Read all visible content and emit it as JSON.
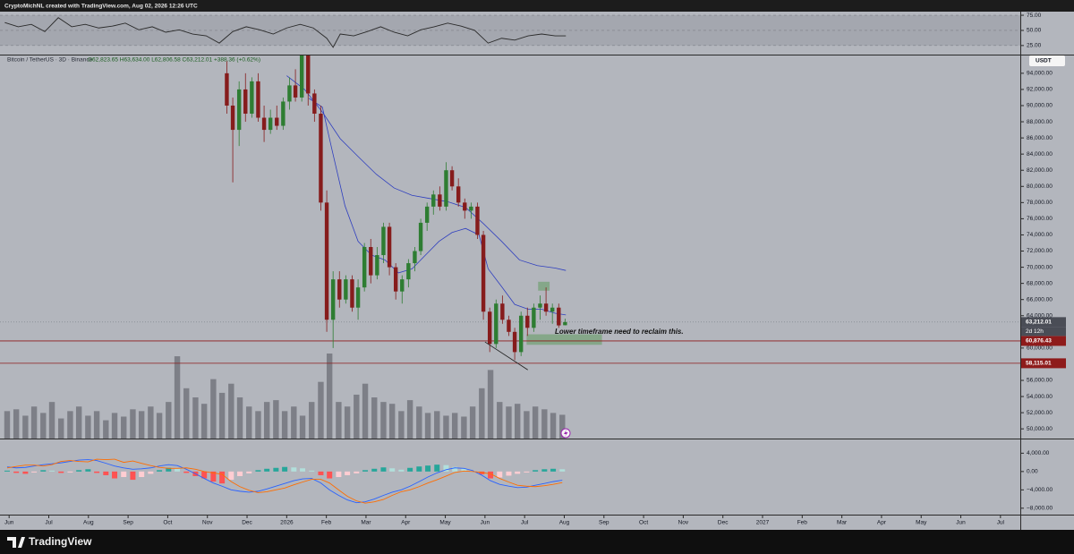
{
  "credit": "CryptoMichNL created with TradingView.com, Aug 02, 2026 12:26 UTC",
  "brand": "TradingView",
  "currency": "USDT",
  "chart_data": [
    {
      "type": "candlestick",
      "symbol": "Bitcoin / TetherUS · 3D · Binance",
      "ohlc": "O62,823.65 H63,634.00 L62,806.58 C63,212.01 +388.36 (+0.62%)",
      "countdown": "2d 12h",
      "annotation": "Lower timeframe need to reclaim this.",
      "xlim": [
        -0.23,
        25.5
      ],
      "ylim": [
        48800,
        96200
      ],
      "yticks": [
        {
          "value": 50000,
          "label": "50,000.00"
        },
        {
          "value": 52000,
          "label": "52,000.00"
        },
        {
          "value": 54000,
          "label": "54,000.00"
        },
        {
          "value": 56000,
          "label": "56,000.00"
        },
        {
          "value": 58000,
          "label": "58,000.00"
        },
        {
          "value": 60000,
          "label": "60,000.00"
        },
        {
          "value": 62000,
          "label": "62,000.00"
        },
        {
          "value": 64000,
          "label": "64,000.00"
        },
        {
          "value": 66000,
          "label": "66,000.00"
        },
        {
          "value": 68000,
          "label": "68,000.00"
        },
        {
          "value": 70000,
          "label": "70,000.00"
        },
        {
          "value": 72000,
          "label": "72,000.00"
        },
        {
          "value": 74000,
          "label": "74,000.00"
        },
        {
          "value": 76000,
          "label": "76,000.00"
        },
        {
          "value": 78000,
          "label": "78,000.00"
        },
        {
          "value": 80000,
          "label": "80,000.00"
        },
        {
          "value": 82000,
          "label": "82,000.00"
        },
        {
          "value": 84000,
          "label": "84,000.00"
        },
        {
          "value": 86000,
          "label": "86,000.00"
        },
        {
          "value": 88000,
          "label": "88,000.00"
        },
        {
          "value": 90000,
          "label": "90,000.00"
        },
        {
          "value": 92000,
          "label": "92,000.00"
        },
        {
          "value": 94000,
          "label": "94,000.00"
        }
      ],
      "up_color": "#2e7d32",
      "down_color": "#861c1c",
      "x": [
        5.49,
        5.64,
        5.8,
        5.96,
        6.12,
        6.28,
        6.43,
        6.59,
        6.75,
        6.91,
        7.07,
        7.22,
        7.38,
        7.54,
        7.7,
        7.86,
        8.01,
        8.17,
        8.33,
        8.49,
        8.65,
        8.8,
        8.96,
        9.12,
        9.28,
        9.44,
        9.59,
        9.75,
        9.91,
        10.07,
        10.23,
        10.38,
        10.54,
        10.7,
        10.86,
        11.02,
        11.17,
        11.33,
        11.49,
        11.65,
        11.81,
        11.96,
        12.12,
        12.28,
        12.44,
        12.6,
        12.75,
        12.91,
        13.07,
        13.23,
        13.39,
        13.54,
        13.7,
        13.86,
        14.02
      ],
      "open": [
        94000,
        90000,
        87000,
        92000,
        89000,
        93000,
        88500,
        87000,
        88500,
        87500,
        90500,
        92500,
        91000,
        96500,
        91500,
        89000,
        78000,
        63500,
        68500,
        66000,
        68500,
        65000,
        67500,
        72500,
        69000,
        71500,
        75000,
        70000,
        67000,
        68500,
        70500,
        72000,
        75500,
        77500,
        79000,
        77500,
        82000,
        80000,
        78000,
        77000,
        77500,
        74000,
        64500,
        60500,
        65500,
        63500,
        62000,
        59500,
        64000,
        62500,
        65000,
        65500,
        64500,
        65000,
        62823.65
      ],
      "high": [
        95500,
        91000,
        93000,
        94000,
        93500,
        94000,
        90000,
        89500,
        90000,
        91000,
        93500,
        94500,
        97000,
        97500,
        92000,
        90000,
        79500,
        69500,
        69500,
        69000,
        69000,
        68500,
        73000,
        73500,
        72500,
        75500,
        75500,
        70500,
        69000,
        71000,
        72500,
        76000,
        78000,
        79500,
        80000,
        83000,
        82500,
        81000,
        78500,
        78000,
        78000,
        74500,
        65000,
        66000,
        66500,
        64000,
        62500,
        64500,
        65000,
        65500,
        66500,
        67500,
        65500,
        65500,
        63634
      ],
      "low": [
        89000,
        80500,
        85000,
        88000,
        88500,
        88000,
        85500,
        86500,
        87000,
        87000,
        89500,
        90500,
        90500,
        90000,
        88000,
        77000,
        62000,
        60000,
        65000,
        65500,
        64500,
        63500,
        67000,
        68000,
        68500,
        70500,
        69000,
        66000,
        65500,
        67500,
        69500,
        71500,
        74500,
        76500,
        77000,
        77000,
        79500,
        77500,
        76000,
        76000,
        73500,
        63500,
        59500,
        60000,
        63000,
        61500,
        58500,
        59000,
        61500,
        62000,
        63500,
        64000,
        63000,
        62500,
        62806.58
      ],
      "close": [
        90000,
        87000,
        92000,
        89000,
        93000,
        88500,
        87000,
        88500,
        87500,
        90500,
        92500,
        91000,
        96500,
        91500,
        89000,
        78000,
        63500,
        68500,
        66000,
        68500,
        65000,
        67500,
        72500,
        69000,
        71500,
        75000,
        70000,
        67000,
        68500,
        70500,
        72000,
        75500,
        77500,
        79000,
        77500,
        82000,
        80000,
        78000,
        77000,
        77500,
        74000,
        64500,
        60500,
        65500,
        63500,
        62000,
        59500,
        64000,
        62500,
        65000,
        65500,
        64500,
        65000,
        62800,
        63212.01
      ],
      "volume": {
        "color": "#73767e",
        "x": [
          -0.05,
          0.18,
          0.41,
          0.63,
          0.86,
          1.08,
          1.31,
          1.54,
          1.76,
          1.99,
          2.21,
          2.44,
          2.66,
          2.89,
          3.12,
          3.34,
          3.57,
          3.79,
          4.02,
          4.24,
          4.47,
          4.7,
          4.92,
          5.15,
          5.37,
          5.6,
          5.82,
          6.05,
          6.28,
          6.5,
          6.73,
          6.95,
          7.18,
          7.4,
          7.63,
          7.86,
          8.08,
          8.31,
          8.53,
          8.76,
          8.98,
          9.21,
          9.44,
          9.66,
          9.89,
          10.11,
          10.34,
          10.56,
          10.79,
          11.02,
          11.24,
          11.47,
          11.69,
          11.92,
          12.14,
          12.37,
          12.6,
          12.82,
          13.05,
          13.27,
          13.5,
          13.72,
          13.95
        ],
        "values": [
          30,
          32,
          25,
          35,
          28,
          40,
          22,
          30,
          35,
          25,
          30,
          20,
          28,
          24,
          32,
          30,
          35,
          28,
          40,
          90,
          55,
          45,
          38,
          65,
          50,
          60,
          45,
          35,
          30,
          40,
          42,
          30,
          35,
          25,
          40,
          62,
          93,
          40,
          35,
          48,
          60,
          45,
          40,
          38,
          30,
          42,
          35,
          28,
          30,
          25,
          28,
          24,
          35,
          55,
          75,
          40,
          35,
          38,
          30,
          35,
          32,
          28,
          26
        ]
      },
      "lines": [
        {
          "color": "#2f3fbf",
          "x": [
            7.0,
            7.45,
            7.9,
            8.35,
            8.8,
            9.26,
            9.71,
            10.16,
            10.61,
            11.06,
            11.51,
            11.96,
            12.42,
            12.87,
            13.32,
            13.77,
            14.04
          ],
          "values": [
            93700,
            92000,
            89200,
            85900,
            83700,
            81500,
            79800,
            78900,
            78500,
            78100,
            77400,
            75400,
            73200,
            70900,
            70200,
            69900,
            69600
          ]
        },
        {
          "color": "#2f3fbf",
          "x": [
            7.56,
            7.9,
            8.13,
            8.47,
            8.8,
            9.14,
            9.48,
            9.82,
            10.16,
            10.5,
            10.84,
            11.17,
            11.51,
            11.85,
            12.08,
            12.42,
            12.75,
            13.09,
            13.43,
            13.77,
            14.04
          ],
          "values": [
            90900,
            89800,
            84800,
            77600,
            73200,
            71500,
            70900,
            69300,
            69800,
            71500,
            73200,
            74300,
            74800,
            74000,
            69800,
            67600,
            65400,
            64800,
            64800,
            64300,
            64100
          ]
        }
      ],
      "zones": [
        {
          "color": "#5e9a5e",
          "x": [
            13.05,
            14.95
          ],
          "y": [
            60400,
            61700
          ]
        },
        {
          "color": "#5e9a5e",
          "x": [
            13.34,
            13.63
          ],
          "y": [
            67100,
            68200
          ]
        }
      ],
      "trendline": {
        "color": "#1e1e1e",
        "x": [
          12.0,
          13.08
        ],
        "y": [
          60750,
          57300
        ]
      },
      "markers": [
        {
          "value": 63212.01,
          "label": "63,212.01",
          "color": "#4a4d56",
          "line": false
        },
        {
          "value": 60876.43,
          "label": "60,876.43",
          "color": "#8e1b1b",
          "line": true
        },
        {
          "value": 58115.01,
          "label": "58,115.01",
          "color": "#8e1b1b",
          "line": true
        }
      ]
    },
    {
      "type": "line",
      "color": "#2a2a2a",
      "xlim": [
        -0.23,
        25.5
      ],
      "ylim": [
        10,
        81
      ],
      "yticks": [
        {
          "value": 75,
          "label": "75.00"
        },
        {
          "value": 50,
          "label": "50.00"
        },
        {
          "value": 25,
          "label": "25.00"
        }
      ],
      "x": [
        -0.11,
        0.23,
        0.56,
        0.9,
        1.24,
        1.58,
        1.92,
        2.26,
        2.6,
        2.93,
        3.27,
        3.61,
        3.95,
        4.29,
        4.63,
        4.97,
        5.3,
        5.64,
        5.98,
        6.32,
        6.66,
        7.0,
        7.34,
        7.67,
        8.01,
        8.17,
        8.35,
        8.69,
        9.03,
        9.37,
        9.71,
        10.05,
        10.38,
        10.72,
        11.06,
        11.4,
        11.74,
        12.08,
        12.42,
        12.75,
        13.09,
        13.43,
        13.77,
        14.04
      ],
      "values": [
        63,
        56,
        60,
        48,
        71,
        56,
        60,
        54,
        57,
        62,
        51,
        56,
        47,
        51,
        44,
        41,
        29,
        48,
        56,
        51,
        44,
        54,
        60,
        54,
        37,
        22,
        44,
        41,
        48,
        56,
        47,
        41,
        51,
        56,
        62,
        57,
        50,
        29,
        37,
        34,
        41,
        44,
        41,
        41
      ]
    },
    {
      "type": "macd",
      "xlim": [
        -0.23,
        25.5
      ],
      "ylim": [
        -9400,
        7000
      ],
      "yticks": [
        {
          "value": 4000,
          "label": "4,000.00"
        },
        {
          "value": 0,
          "label": "0.00"
        },
        {
          "value": -4000,
          "label": "−4,000.00"
        },
        {
          "value": -8000,
          "label": "−8,000.00"
        }
      ],
      "xticks": [
        {
          "value": 0,
          "label": "Jun"
        },
        {
          "value": 1,
          "label": "Jul"
        },
        {
          "value": 2,
          "label": "Aug"
        },
        {
          "value": 3,
          "label": "Sep"
        },
        {
          "value": 4,
          "label": "Oct"
        },
        {
          "value": 5,
          "label": "Nov"
        },
        {
          "value": 6,
          "label": "Dec"
        },
        {
          "value": 7,
          "label": "2026"
        },
        {
          "value": 8,
          "label": "Feb"
        },
        {
          "value": 9,
          "label": "Mar"
        },
        {
          "value": 10,
          "label": "Apr"
        },
        {
          "value": 11,
          "label": "May"
        },
        {
          "value": 12,
          "label": "Jun"
        },
        {
          "value": 13,
          "label": "Jul"
        },
        {
          "value": 14,
          "label": "Aug"
        },
        {
          "value": 15,
          "label": "Sep"
        },
        {
          "value": 16,
          "label": "Oct"
        },
        {
          "value": 17,
          "label": "Nov"
        },
        {
          "value": 18,
          "label": "Dec"
        },
        {
          "value": 19,
          "label": "2027"
        },
        {
          "value": 20,
          "label": "Feb"
        },
        {
          "value": 21,
          "label": "Mar"
        },
        {
          "value": 22,
          "label": "Apr"
        },
        {
          "value": 23,
          "label": "May"
        },
        {
          "value": 24,
          "label": "Jun"
        },
        {
          "value": 25,
          "label": "Jul"
        }
      ],
      "histogram_colors": [
        "#26a69a",
        "#b2dfdb",
        "#ff5252",
        "#ffcdd2"
      ],
      "macd_color": "#2962ff",
      "signal_color": "#ff6d00",
      "x": [
        -0.05,
        0.18,
        0.41,
        0.63,
        0.86,
        1.08,
        1.31,
        1.54,
        1.76,
        1.99,
        2.21,
        2.44,
        2.66,
        2.89,
        3.12,
        3.34,
        3.57,
        3.79,
        4.02,
        4.24,
        4.47,
        4.7,
        4.92,
        5.15,
        5.37,
        5.6,
        5.82,
        6.05,
        6.28,
        6.5,
        6.73,
        6.95,
        7.18,
        7.4,
        7.63,
        7.86,
        8.08,
        8.31,
        8.53,
        8.76,
        8.98,
        9.21,
        9.44,
        9.66,
        9.89,
        10.11,
        10.34,
        10.56,
        10.79,
        11.02,
        11.24,
        11.47,
        11.69,
        11.92,
        12.14,
        12.37,
        12.6,
        12.82,
        13.05,
        13.27,
        13.5,
        13.72,
        13.95
      ],
      "histogram": [
        200,
        -300,
        -500,
        -200,
        300,
        200,
        -300,
        -200,
        300,
        500,
        -300,
        -800,
        -1500,
        -1200,
        -1800,
        -1200,
        -500,
        300,
        800,
        600,
        -300,
        -1000,
        -1500,
        -2200,
        -2600,
        -1800,
        -1000,
        -400,
        300,
        600,
        800,
        1000,
        900,
        700,
        200,
        -800,
        -1500,
        -1200,
        -800,
        -400,
        300,
        600,
        900,
        700,
        400,
        800,
        1100,
        1300,
        1500,
        1400,
        1000,
        600,
        200,
        -600,
        -1500,
        -1300,
        -900,
        -500,
        -200,
        300,
        500,
        600,
        500
      ],
      "macd": [
        1000,
        800,
        900,
        1200,
        1500,
        1700,
        1900,
        2200,
        2500,
        2600,
        2400,
        1800,
        1200,
        800,
        500,
        600,
        800,
        1200,
        1500,
        1300,
        500,
        -500,
        -1500,
        -2500,
        -3200,
        -4000,
        -4300,
        -4500,
        -4300,
        -3800,
        -3200,
        -2600,
        -2000,
        -1600,
        -1500,
        -2500,
        -4000,
        -5200,
        -6200,
        -6800,
        -6600,
        -6000,
        -5200,
        -4500,
        -4000,
        -3200,
        -2200,
        -1200,
        -300,
        400,
        800,
        700,
        200,
        -800,
        -2000,
        -2800,
        -3200,
        -3500,
        -3400,
        -3000,
        -2600,
        -2200,
        -1900
      ],
      "signal": [
        800,
        1100,
        1400,
        1400,
        1200,
        1500,
        2200,
        2400,
        2200,
        2100,
        2700,
        2600,
        2700,
        2000,
        2300,
        1800,
        1300,
        900,
        700,
        700,
        800,
        500,
        0,
        -300,
        -600,
        -2200,
        -3300,
        -4100,
        -4600,
        -4400,
        -4000,
        -3600,
        -2900,
        -2300,
        -1700,
        -1700,
        -2500,
        -4000,
        -5400,
        -6400,
        -6900,
        -6600,
        -6100,
        -5200,
        -4400,
        -4000,
        -3300,
        -2500,
        -1800,
        -1000,
        -200,
        100,
        0,
        -200,
        -500,
        -1500,
        -2300,
        -3000,
        -3200,
        -3300,
        -3100,
        -2800,
        -2400
      ]
    }
  ]
}
